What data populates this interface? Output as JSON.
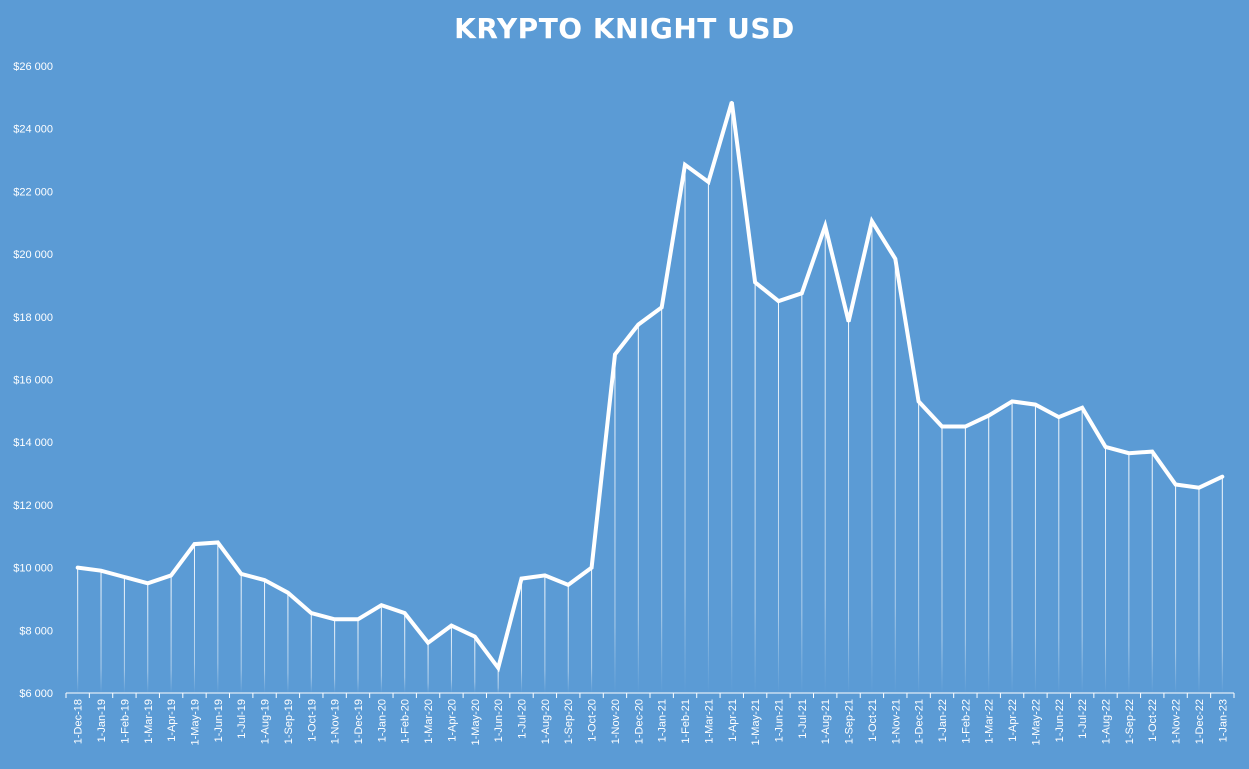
{
  "chart_data": {
    "type": "line",
    "title": "KRYPTO KNIGHT USD",
    "xlabel": "",
    "ylabel": "",
    "ylim": [
      6000,
      26000
    ],
    "y_ticks": [
      6000,
      8000,
      10000,
      12000,
      14000,
      16000,
      18000,
      20000,
      22000,
      24000,
      26000
    ],
    "y_tick_labels": [
      "$6 000",
      "$8 000",
      "$10 000",
      "$12 000",
      "$14 000",
      "$16 000",
      "$18 000",
      "$20 000",
      "$22 000",
      "$24 000",
      "$26 000"
    ],
    "grid": false,
    "legend": "none",
    "colors": {
      "background": "#5b9bd5",
      "line": "#ffffff",
      "drop_lines": "#ffffff"
    },
    "categories": [
      "1-Dec-18",
      "1-Jan-19",
      "1-Feb-19",
      "1-Mar-19",
      "1-Apr-19",
      "1-May-19",
      "1-Jun-19",
      "1-Jul-19",
      "1-Aug-19",
      "1-Sep-19",
      "1-Oct-19",
      "1-Nov-19",
      "1-Dec-19",
      "1-Jan-20",
      "1-Feb-20",
      "1-Mar-20",
      "1-Apr-20",
      "1-May-20",
      "1-Jun-20",
      "1-Jul-20",
      "1-Aug-20",
      "1-Sep-20",
      "1-Oct-20",
      "1-Nov-20",
      "1-Dec-20",
      "1-Jan-21",
      "1-Feb-21",
      "1-Mar-21",
      "1-Apr-21",
      "1-May-21",
      "1-Jun-21",
      "1-Jul-21",
      "1-Aug-21",
      "1-Sep-21",
      "1-Oct-21",
      "1-Nov-21",
      "1-Dec-21",
      "1-Jan-22",
      "1-Feb-22",
      "1-Mar-22",
      "1-Apr-22",
      "1-May-22",
      "1-Jun-22",
      "1-Jul-22",
      "1-Aug-22",
      "1-Sep-22",
      "1-Oct-22",
      "1-Nov-22",
      "1-Dec-22",
      "1-Jan-23"
    ],
    "series": [
      {
        "values": [
          10000,
          9900,
          9700,
          9500,
          9750,
          10750,
          10800,
          9800,
          9600,
          9200,
          8550,
          8350,
          8350,
          8800,
          8550,
          7600,
          8150,
          7800,
          6800,
          9650,
          9750,
          9450,
          10000,
          16800,
          17750,
          18300,
          22850,
          22300,
          24850,
          19100,
          18500,
          18750,
          20900,
          17850,
          21050,
          19850,
          15300,
          14500,
          14500,
          14850,
          15300,
          15200,
          14800,
          15100,
          13850,
          13650,
          13700,
          12650,
          12550,
          12900
        ]
      }
    ]
  }
}
